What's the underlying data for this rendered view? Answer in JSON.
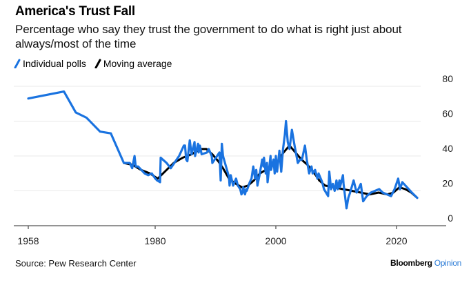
{
  "header": {
    "title": "America's Trust Fall",
    "subtitle": "Percentage who say they trust the government to do what is right just about always/most of the time"
  },
  "legend": [
    {
      "label": "Individual polls",
      "color": "#1a73e0"
    },
    {
      "label": "Moving average",
      "color": "#000000"
    }
  ],
  "footer": {
    "source": "Source: Pew Research Center",
    "brand_main": "Bloomberg",
    "brand_accent": "Opinion"
  },
  "chart_data": {
    "type": "line",
    "title": "America's Trust Fall",
    "xlabel": "",
    "ylabel": "",
    "xlim": [
      1958,
      2026
    ],
    "ylim": [
      0,
      80
    ],
    "x_ticks": [
      1958,
      1980,
      2000,
      2020
    ],
    "x_tick_labels": [
      "1958",
      "1980",
      "2000",
      "2020"
    ],
    "y_ticks": [
      0,
      20,
      40,
      60,
      80
    ],
    "y_tick_labels": [
      "0",
      "20",
      "40",
      "60",
      "80"
    ],
    "y_axis_side": "right",
    "grid": true,
    "legend_position": "top-left",
    "series": [
      {
        "name": "Individual polls",
        "color": "#1a73e0",
        "points": [
          [
            1958.0,
            73
          ],
          [
            1964.0,
            77
          ],
          [
            1966.0,
            65
          ],
          [
            1967.8,
            62
          ],
          [
            1970.1,
            54
          ],
          [
            1971.9,
            53
          ],
          [
            1974.1,
            36
          ],
          [
            1975.1,
            36
          ],
          [
            1975.5,
            33
          ],
          [
            1975.9,
            40
          ],
          [
            1976.1,
            34
          ],
          [
            1976.5,
            34
          ],
          [
            1977.6,
            30
          ],
          [
            1978.2,
            29
          ],
          [
            1978.8,
            30
          ],
          [
            1979.4,
            27
          ],
          [
            1979.7,
            26
          ],
          [
            1980.2,
            25
          ],
          [
            1980.3,
            39
          ],
          [
            1981.3,
            36
          ],
          [
            1982.0,
            33
          ],
          [
            1983.4,
            40
          ],
          [
            1984.2,
            46
          ],
          [
            1984.4,
            46
          ],
          [
            1984.6,
            38
          ],
          [
            1984.8,
            37
          ],
          [
            1985.2,
            49
          ],
          [
            1985.5,
            41
          ],
          [
            1986.0,
            48
          ],
          [
            1986.1,
            40
          ],
          [
            1986.6,
            47
          ],
          [
            1986.7,
            42
          ],
          [
            1986.9,
            46
          ],
          [
            1987.2,
            41
          ],
          [
            1988.1,
            42
          ],
          [
            1988.4,
            44
          ],
          [
            1988.9,
            40
          ],
          [
            1989.0,
            36
          ],
          [
            1989.6,
            39
          ],
          [
            1990.2,
            42
          ],
          [
            1990.4,
            26
          ],
          [
            1990.6,
            47
          ],
          [
            1990.8,
            40
          ],
          [
            1991.8,
            28
          ],
          [
            1991.9,
            23
          ],
          [
            1992.1,
            29
          ],
          [
            1992.5,
            23
          ],
          [
            1993.0,
            27
          ],
          [
            1993.3,
            23
          ],
          [
            1993.7,
            21
          ],
          [
            1993.9,
            18
          ],
          [
            1994.1,
            19
          ],
          [
            1994.2,
            22
          ],
          [
            1994.5,
            18
          ],
          [
            1994.7,
            21
          ],
          [
            1994.8,
            20
          ],
          [
            1995.3,
            25
          ],
          [
            1995.6,
            27
          ],
          [
            1995.9,
            34
          ],
          [
            1996.2,
            27
          ],
          [
            1996.4,
            32
          ],
          [
            1996.6,
            23
          ],
          [
            1997.0,
            30
          ],
          [
            1997.4,
            38
          ],
          [
            1997.6,
            34
          ],
          [
            1997.7,
            39
          ],
          [
            1998.0,
            30
          ],
          [
            1998.2,
            36
          ],
          [
            1998.3,
            25
          ],
          [
            1998.8,
            40
          ],
          [
            1998.9,
            32
          ],
          [
            1999.3,
            38
          ],
          [
            1999.5,
            30
          ],
          [
            1999.7,
            40
          ],
          [
            1999.9,
            31
          ],
          [
            2000.3,
            43
          ],
          [
            2000.6,
            31
          ],
          [
            2000.9,
            44
          ],
          [
            2001.2,
            52
          ],
          [
            2001.4,
            60
          ],
          [
            2001.7,
            48
          ],
          [
            2002.0,
            44
          ],
          [
            2002.4,
            55
          ],
          [
            2002.8,
            47
          ],
          [
            2002.9,
            45
          ],
          [
            2003.4,
            36
          ],
          [
            2003.8,
            38
          ],
          [
            2004.1,
            38
          ],
          [
            2004.6,
            46
          ],
          [
            2004.9,
            38
          ],
          [
            2005.3,
            30
          ],
          [
            2005.7,
            34
          ],
          [
            2005.9,
            30
          ],
          [
            2006.3,
            32
          ],
          [
            2006.7,
            27
          ],
          [
            2006.9,
            30
          ],
          [
            2007.5,
            25
          ],
          [
            2007.8,
            21
          ],
          [
            2008.5,
            17
          ],
          [
            2008.7,
            31
          ],
          [
            2009.0,
            21
          ],
          [
            2009.3,
            24
          ],
          [
            2009.6,
            20
          ],
          [
            2009.9,
            26
          ],
          [
            2010.1,
            21
          ],
          [
            2010.4,
            26
          ],
          [
            2010.5,
            22
          ],
          [
            2011.0,
            29
          ],
          [
            2011.1,
            24
          ],
          [
            2011.6,
            10
          ],
          [
            2011.9,
            16
          ],
          [
            2012.2,
            19
          ],
          [
            2012.8,
            26
          ],
          [
            2013.3,
            19
          ],
          [
            2013.6,
            21
          ],
          [
            2014.0,
            24
          ],
          [
            2014.4,
            14
          ],
          [
            2015.0,
            17
          ],
          [
            2015.7,
            19
          ],
          [
            2017.1,
            21
          ],
          [
            2017.7,
            19
          ],
          [
            2019.1,
            17
          ],
          [
            2019.7,
            21
          ],
          [
            2020.3,
            27
          ],
          [
            2020.6,
            21
          ],
          [
            2021.0,
            25
          ],
          [
            2021.8,
            22
          ],
          [
            2022.6,
            19
          ],
          [
            2023.5,
            16
          ]
        ]
      },
      {
        "name": "Moving average",
        "color": "#000000",
        "points": [
          [
            1974.1,
            36
          ],
          [
            1975.5,
            35
          ],
          [
            1977.0,
            32
          ],
          [
            1978.5,
            30
          ],
          [
            1979.8,
            27
          ],
          [
            1981.0,
            31
          ],
          [
            1982.5,
            36
          ],
          [
            1984.0,
            39
          ],
          [
            1985.5,
            41
          ],
          [
            1987.0,
            44
          ],
          [
            1988.0,
            44
          ],
          [
            1989.0,
            41
          ],
          [
            1990.0,
            37
          ],
          [
            1990.8,
            33
          ],
          [
            1991.8,
            27
          ],
          [
            1993.0,
            24
          ],
          [
            1994.0,
            22
          ],
          [
            1995.0,
            23
          ],
          [
            1996.0,
            26
          ],
          [
            1997.0,
            30
          ],
          [
            1998.0,
            32
          ],
          [
            1999.0,
            35
          ],
          [
            2000.0,
            37
          ],
          [
            2001.0,
            42
          ],
          [
            2002.0,
            46
          ],
          [
            2003.0,
            42
          ],
          [
            2004.0,
            38
          ],
          [
            2005.0,
            35
          ],
          [
            2006.0,
            31
          ],
          [
            2007.0,
            26
          ],
          [
            2008.0,
            23
          ],
          [
            2009.5,
            22
          ],
          [
            2011.0,
            21
          ],
          [
            2012.5,
            20
          ],
          [
            2014.0,
            19
          ],
          [
            2015.5,
            18
          ],
          [
            2017.0,
            19
          ],
          [
            2018.5,
            18
          ],
          [
            2019.5,
            19
          ],
          [
            2020.5,
            22
          ],
          [
            2021.5,
            21
          ],
          [
            2022.5,
            19
          ],
          [
            2023.5,
            16
          ]
        ]
      }
    ]
  }
}
